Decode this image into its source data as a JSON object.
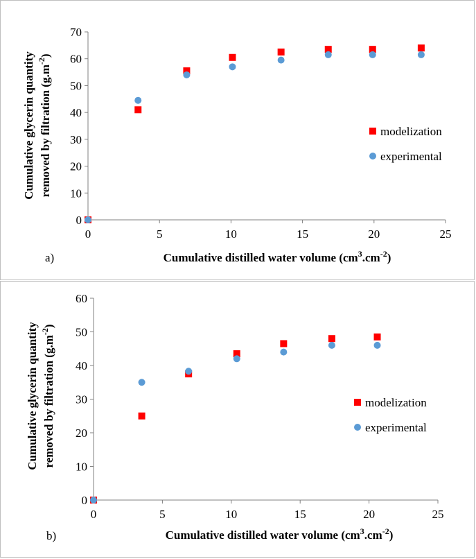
{
  "chart_data": [
    {
      "type": "scatter",
      "panel_label": "a)",
      "xlabel_main": "Cumulative  distilled water volume (cm",
      "xlabel_sup1": "3",
      "xlabel_mid": ".cm",
      "xlabel_sup2": "-2",
      "xlabel_end": ")",
      "ylabel_line1": "Cumulative  glycerin quantity",
      "ylabel_line2_main": "removed by filtration  (g.m",
      "ylabel_line2_sup": "-2",
      "ylabel_line2_end": ")",
      "xlim": [
        0,
        25
      ],
      "ylim": [
        0,
        70
      ],
      "xticks": [
        "0",
        "5",
        "10",
        "15",
        "20",
        "25"
      ],
      "yticks": [
        "0",
        "10",
        "20",
        "30",
        "40",
        "50",
        "60",
        "70"
      ],
      "legend": "right",
      "series": [
        {
          "name": "modelization",
          "marker": "square",
          "color": "#ff0000",
          "x": [
            0,
            3.5,
            6.9,
            10.1,
            13.5,
            16.8,
            19.9,
            23.3
          ],
          "y": [
            0,
            41,
            55.5,
            60.5,
            62.5,
            63.5,
            63.5,
            64
          ]
        },
        {
          "name": "experimental",
          "marker": "circle",
          "color": "#5b9bd5",
          "x": [
            0,
            3.5,
            6.9,
            10.1,
            13.5,
            16.8,
            19.9,
            23.3
          ],
          "y": [
            0,
            44.5,
            54,
            57,
            59.5,
            61.5,
            61.5,
            61.5
          ]
        }
      ]
    },
    {
      "type": "scatter",
      "panel_label": "b)",
      "xlabel_main": "Cumulative  distilled water volume (cm",
      "xlabel_sup1": "3",
      "xlabel_mid": ".cm",
      "xlabel_sup2": "-2",
      "xlabel_end": ")",
      "ylabel_line1": "Cumulative  glycerin quantity",
      "ylabel_line2_main": "removed by filtration  (g.m",
      "ylabel_line2_sup": "-2",
      "ylabel_line2_end": ")",
      "xlim": [
        0,
        25
      ],
      "ylim": [
        0,
        60
      ],
      "xticks": [
        "0",
        "5",
        "10",
        "15",
        "20",
        "25"
      ],
      "yticks": [
        "0",
        "10",
        "20",
        "30",
        "40",
        "50",
        "60"
      ],
      "legend": "right",
      "series": [
        {
          "name": "modelization",
          "marker": "square",
          "color": "#ff0000",
          "x": [
            0,
            3.5,
            6.9,
            10.4,
            13.8,
            17.3,
            20.6
          ],
          "y": [
            0,
            25,
            37.5,
            43.5,
            46.5,
            48,
            48.5
          ]
        },
        {
          "name": "experimental",
          "marker": "circle",
          "color": "#5b9bd5",
          "x": [
            0,
            3.5,
            6.9,
            10.4,
            13.8,
            17.3,
            20.6
          ],
          "y": [
            0,
            35,
            38.3,
            42,
            44,
            46,
            46
          ]
        }
      ]
    }
  ]
}
